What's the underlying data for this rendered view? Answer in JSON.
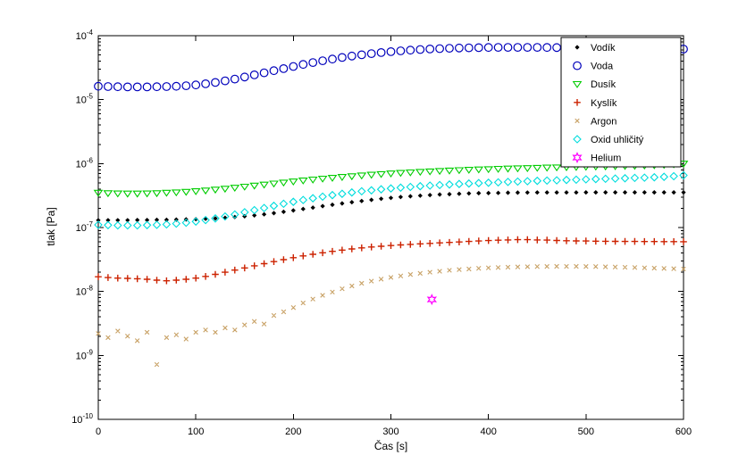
{
  "chart_data": {
    "type": "scatter",
    "title": "",
    "xlabel": "Čas [s]",
    "ylabel": "tlak [Pa]",
    "xlim": [
      0,
      600
    ],
    "xticks": [
      0,
      100,
      200,
      300,
      400,
      500,
      600
    ],
    "ylim": [
      1e-10,
      0.0001
    ],
    "yscale": "log",
    "ytick_exponents": [
      -10,
      -9,
      -8,
      -7,
      -6,
      -5,
      -4
    ],
    "grid": false,
    "legend_position": "upper-right",
    "x": [
      0,
      10,
      20,
      30,
      40,
      50,
      60,
      70,
      80,
      90,
      100,
      110,
      120,
      130,
      140,
      150,
      160,
      170,
      180,
      190,
      200,
      210,
      220,
      230,
      240,
      250,
      260,
      270,
      280,
      290,
      300,
      310,
      320,
      330,
      340,
      350,
      360,
      370,
      380,
      390,
      400,
      410,
      420,
      430,
      440,
      450,
      460,
      470,
      480,
      490,
      500,
      510,
      520,
      530,
      540,
      550,
      560,
      570,
      580,
      590,
      600
    ],
    "series": [
      {
        "id": "vodik",
        "name": "Vodík",
        "color": "#000000",
        "marker": "diamond",
        "filled": true,
        "size": 2.6,
        "stroke_width": 1,
        "y_scale": 1e-07,
        "y": [
          1.3,
          1.3,
          1.3,
          1.3,
          1.31,
          1.31,
          1.32,
          1.32,
          1.33,
          1.34,
          1.35,
          1.37,
          1.39,
          1.42,
          1.46,
          1.5,
          1.55,
          1.61,
          1.68,
          1.76,
          1.85,
          1.95,
          2.05,
          2.16,
          2.27,
          2.38,
          2.49,
          2.6,
          2.71,
          2.81,
          2.91,
          3.0,
          3.08,
          3.15,
          3.22,
          3.28,
          3.33,
          3.37,
          3.41,
          3.44,
          3.46,
          3.48,
          3.5,
          3.51,
          3.52,
          3.53,
          3.53,
          3.54,
          3.54,
          3.54,
          3.55,
          3.55,
          3.55,
          3.55,
          3.55,
          3.55,
          3.55,
          3.55,
          3.55,
          3.55,
          3.55
        ]
      },
      {
        "id": "voda",
        "name": "Voda",
        "color": "#0000bb",
        "marker": "circle",
        "filled": false,
        "size": 4.3,
        "stroke_width": 1.2,
        "y_scale": 1e-05,
        "y": [
          1.62,
          1.6,
          1.59,
          1.58,
          1.58,
          1.58,
          1.59,
          1.6,
          1.62,
          1.65,
          1.7,
          1.77,
          1.86,
          1.97,
          2.1,
          2.26,
          2.44,
          2.63,
          2.84,
          3.06,
          3.3,
          3.55,
          3.8,
          4.06,
          4.31,
          4.56,
          4.8,
          5.03,
          5.25,
          5.45,
          5.63,
          5.8,
          5.95,
          6.08,
          6.19,
          6.28,
          6.36,
          6.42,
          6.47,
          6.51,
          6.54,
          6.56,
          6.57,
          6.57,
          6.57,
          6.56,
          6.55,
          6.53,
          6.51,
          6.49,
          6.47,
          6.44,
          6.42,
          6.39,
          6.36,
          6.33,
          6.3,
          6.27,
          6.24,
          6.21,
          6.18
        ]
      },
      {
        "id": "dusik",
        "name": "Dusík",
        "color": "#00cc00",
        "marker": "triangle-down",
        "filled": false,
        "size": 4.3,
        "stroke_width": 1.1,
        "y_scale": 1e-07,
        "y": [
          3.5,
          3.45,
          3.42,
          3.4,
          3.4,
          3.42,
          3.45,
          3.5,
          3.55,
          3.62,
          3.7,
          3.8,
          3.92,
          4.05,
          4.2,
          4.36,
          4.53,
          4.7,
          4.88,
          5.06,
          5.25,
          5.44,
          5.63,
          5.82,
          6.0,
          6.18,
          6.36,
          6.53,
          6.7,
          6.86,
          7.01,
          7.16,
          7.3,
          7.43,
          7.56,
          7.68,
          7.79,
          7.9,
          8.0,
          8.1,
          8.19,
          8.28,
          8.36,
          8.44,
          8.52,
          8.59,
          8.66,
          8.73,
          8.8,
          8.86,
          8.92,
          8.98,
          9.04,
          9.1,
          9.16,
          9.22,
          9.3,
          9.4,
          9.55,
          9.75,
          10.0
        ]
      },
      {
        "id": "kyslik",
        "name": "Kyslík",
        "color": "#cc2200",
        "marker": "plus",
        "filled": false,
        "size": 3.8,
        "stroke_width": 1.4,
        "y_scale": 1e-08,
        "y": [
          1.7,
          1.65,
          1.62,
          1.6,
          1.58,
          1.55,
          1.5,
          1.47,
          1.5,
          1.55,
          1.62,
          1.72,
          1.85,
          2.0,
          2.16,
          2.33,
          2.52,
          2.72,
          2.93,
          3.15,
          3.38,
          3.6,
          3.82,
          4.03,
          4.24,
          4.44,
          4.62,
          4.8,
          4.96,
          5.1,
          5.23,
          5.35,
          5.45,
          5.55,
          5.65,
          5.75,
          5.85,
          5.95,
          6.05,
          6.15,
          6.25,
          6.33,
          6.4,
          6.45,
          6.45,
          6.4,
          6.35,
          6.28,
          6.22,
          6.18,
          6.15,
          6.12,
          6.1,
          6.08,
          6.06,
          6.05,
          6.04,
          6.03,
          6.02,
          6.01,
          6.0
        ]
      },
      {
        "id": "argon",
        "name": "Argon",
        "color": "#c8a165",
        "marker": "x",
        "filled": false,
        "size": 3.0,
        "stroke_width": 1.1,
        "y_scale": 1e-09,
        "y": [
          2.2,
          1.9,
          2.4,
          2.0,
          1.7,
          2.3,
          0.72,
          1.9,
          2.1,
          1.8,
          2.3,
          2.5,
          2.3,
          2.7,
          2.5,
          3.0,
          3.4,
          3.1,
          4.2,
          4.8,
          5.6,
          6.6,
          7.6,
          8.7,
          9.8,
          11.0,
          12.2,
          13.4,
          14.5,
          15.6,
          16.6,
          17.5,
          18.4,
          19.2,
          20.0,
          20.7,
          21.4,
          22.0,
          22.5,
          23.0,
          23.4,
          23.7,
          24.0,
          24.2,
          24.4,
          24.5,
          24.6,
          24.7,
          24.7,
          24.7,
          24.6,
          24.5,
          24.3,
          24.1,
          23.9,
          23.7,
          23.4,
          23.2,
          22.9,
          22.7,
          22.5
        ]
      },
      {
        "id": "oxid-uhlicity",
        "name": "Oxid uhličitý",
        "color": "#00dddd",
        "marker": "diamond",
        "filled": false,
        "size": 4.0,
        "stroke_width": 1.1,
        "y_scale": 1e-07,
        "y": [
          1.1,
          1.09,
          1.08,
          1.08,
          1.08,
          1.09,
          1.1,
          1.12,
          1.15,
          1.19,
          1.24,
          1.31,
          1.39,
          1.49,
          1.6,
          1.73,
          1.87,
          2.02,
          2.18,
          2.35,
          2.52,
          2.7,
          2.87,
          3.04,
          3.21,
          3.37,
          3.53,
          3.68,
          3.82,
          3.95,
          4.08,
          4.2,
          4.31,
          4.42,
          4.52,
          4.61,
          4.7,
          4.79,
          4.87,
          4.95,
          5.02,
          5.09,
          5.16,
          5.23,
          5.3,
          5.36,
          5.42,
          5.48,
          5.54,
          5.6,
          5.66,
          5.72,
          5.78,
          5.84,
          5.9,
          5.96,
          6.02,
          6.1,
          6.2,
          6.35,
          6.55
        ]
      },
      {
        "id": "helium",
        "name": "Helium",
        "color": "#ff00ff",
        "marker": "hexagram",
        "filled": false,
        "size": 5,
        "stroke_width": 1.2,
        "y_scale": 1e-09,
        "x": [
          342
        ],
        "y": [
          7.5
        ]
      }
    ]
  }
}
